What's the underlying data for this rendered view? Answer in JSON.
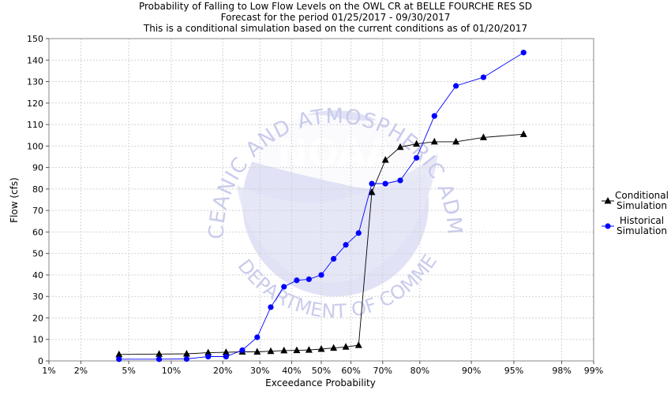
{
  "titles": [
    "Probability of Falling to Low Flow Levels on the OWL CR at BELLE FOURCHE RES SD",
    "Forecast for the period 01/25/2017 - 09/30/2017",
    "This is a conditional simulation based on the current conditions as of 01/20/2017"
  ],
  "watermark": {
    "logo_text": "NOAA",
    "ring_text": "NATIONAL OCEANIC AND ATMOSPHERIC ADMINISTRATION",
    "bottom_text": "U.S. DEPARTMENT OF COMMERCE",
    "color": "#c9cbec"
  },
  "chart_data": {
    "type": "line",
    "title": "Probability of Falling to Low Flow Levels on the OWL CR at BELLE FOURCHE RES SD",
    "xlabel": "Exceedance Probability",
    "ylabel": "Flow (cfs)",
    "x_scale": "normal-probability",
    "x_ticks": [
      1,
      2,
      5,
      10,
      20,
      30,
      40,
      50,
      60,
      70,
      80,
      90,
      95,
      98,
      99
    ],
    "x_tick_labels": [
      "1%",
      "2%",
      "5%",
      "10%",
      "20%",
      "30%",
      "40%",
      "50%",
      "60%",
      "70%",
      "80%",
      "90%",
      "95%",
      "98%",
      "99%"
    ],
    "ylim": [
      0,
      150
    ],
    "y_ticks": [
      0,
      10,
      20,
      30,
      40,
      50,
      60,
      70,
      80,
      90,
      100,
      110,
      120,
      130,
      140,
      150
    ],
    "grid": true,
    "legend_position": "right",
    "series": [
      {
        "name": "Conditional Simulation",
        "color": "#000000",
        "marker": "triangle",
        "points": [
          [
            4.2,
            3
          ],
          [
            8.3,
            3.2
          ],
          [
            12.5,
            3.3
          ],
          [
            16.7,
            3.8
          ],
          [
            20.8,
            4
          ],
          [
            25,
            4.2
          ],
          [
            29.2,
            4.2
          ],
          [
            33.3,
            4.5
          ],
          [
            37.5,
            4.8
          ],
          [
            41.7,
            4.9
          ],
          [
            45.8,
            5.1
          ],
          [
            50,
            5.5
          ],
          [
            54.2,
            6
          ],
          [
            58.3,
            6.5
          ],
          [
            62.5,
            7.3
          ],
          [
            66.7,
            78.5
          ],
          [
            70.8,
            93.5
          ],
          [
            75,
            99.5
          ],
          [
            79.2,
            101
          ],
          [
            83.3,
            102
          ],
          [
            87.5,
            102
          ],
          [
            91.7,
            104
          ],
          [
            95.8,
            105.5
          ]
        ]
      },
      {
        "name": "Historical Simulation",
        "color": "#0000ff",
        "marker": "circle",
        "points": [
          [
            4.2,
            0.8
          ],
          [
            8.3,
            0.8
          ],
          [
            12.5,
            0.9
          ],
          [
            16.7,
            2
          ],
          [
            20.8,
            2
          ],
          [
            25,
            5
          ],
          [
            29.2,
            11
          ],
          [
            33.3,
            25
          ],
          [
            37.5,
            34.5
          ],
          [
            41.7,
            37.5
          ],
          [
            45.8,
            38
          ],
          [
            50,
            40
          ],
          [
            54.2,
            47.5
          ],
          [
            58.3,
            54
          ],
          [
            62.5,
            59.5
          ],
          [
            66.7,
            82.5
          ],
          [
            70.8,
            82.5
          ],
          [
            75,
            84
          ],
          [
            79.2,
            94.5
          ],
          [
            83.3,
            114
          ],
          [
            87.5,
            128
          ],
          [
            91.7,
            132
          ],
          [
            95.8,
            143.5
          ]
        ]
      }
    ]
  }
}
